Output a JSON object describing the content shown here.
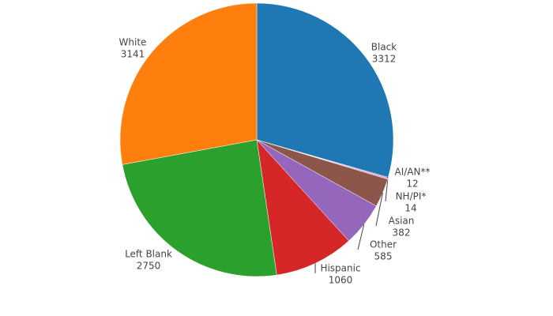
{
  "chart_data": {
    "type": "pie",
    "categories": [
      "Black",
      "AI/AN**",
      "NH/PI*",
      "Asian",
      "Other",
      "Hispanic",
      "Left Blank",
      "White"
    ],
    "values": [
      3312,
      12,
      14,
      382,
      585,
      1060,
      2750,
      3141
    ],
    "colors": [
      "#1f77b4",
      "#7f7f7f",
      "#e377c2",
      "#8c564b",
      "#9467bd",
      "#d62728",
      "#2ca02c",
      "#ff7f0e"
    ]
  }
}
